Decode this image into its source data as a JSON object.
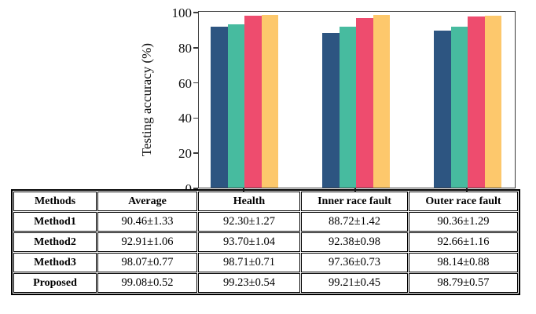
{
  "chart_data": {
    "type": "bar",
    "title": "",
    "xlabel": "",
    "ylabel": "Testing accuracy (%)",
    "ylim": [
      0,
      101
    ],
    "yticks": [
      0,
      20,
      40,
      60,
      80,
      100
    ],
    "grid": false,
    "legend": "none (series identified by table rows below)",
    "categories": [
      "Health",
      "Inner race fault",
      "Outer race fault"
    ],
    "series": [
      {
        "name": "Method1",
        "color": "#2d5581",
        "values": [
          92.3,
          88.72,
          90.36
        ]
      },
      {
        "name": "Method2",
        "color": "#47bb9f",
        "values": [
          93.7,
          92.38,
          92.66
        ]
      },
      {
        "name": "Method3",
        "color": "#ee4c6e",
        "values": [
          98.71,
          97.36,
          98.14
        ]
      },
      {
        "name": "Proposed",
        "color": "#fdc86c",
        "values": [
          99.23,
          99.21,
          98.79
        ]
      }
    ]
  },
  "table": {
    "headers": [
      "Methods",
      "Average",
      "Health",
      "Inner race fault",
      "Outer race fault"
    ],
    "rows": [
      [
        "Method1",
        "90.46±1.33",
        "92.30±1.27",
        "88.72±1.42",
        "90.36±1.29"
      ],
      [
        "Method2",
        "92.91±1.06",
        "93.70±1.04",
        "92.38±0.98",
        "92.66±1.16"
      ],
      [
        "Method3",
        "98.07±0.77",
        "98.71±0.71",
        "97.36±0.73",
        "98.14±0.88"
      ],
      [
        "Proposed",
        "99.08±0.52",
        "99.23±0.54",
        "99.21±0.45",
        "98.79±0.57"
      ]
    ]
  },
  "colors": {
    "axis_frame": "#3a3a3a",
    "table_border": "#000000",
    "background": "#ffffff"
  }
}
